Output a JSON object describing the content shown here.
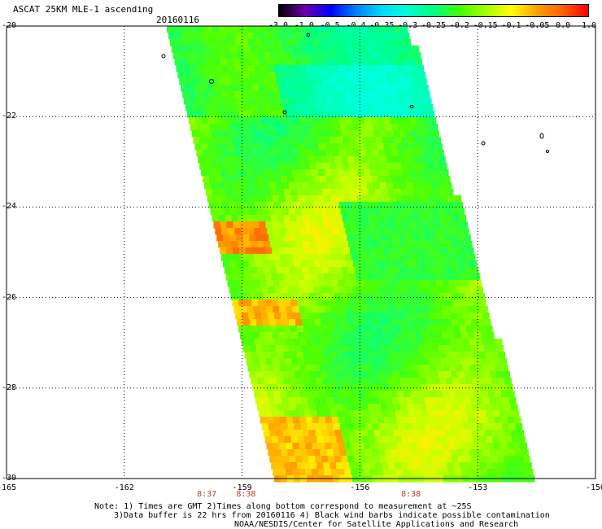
{
  "title": "ASCAT 25KM MLE-1 ascending",
  "date": "20160116",
  "colorbar": {
    "labels": [
      "-3.0",
      "-1.0",
      "-0.5",
      "-0.4",
      "-0.35",
      "-0.3",
      "-0.25",
      "-0.2",
      "-0.15",
      "-0.1",
      "-0.05",
      "0.0",
      "1.0"
    ],
    "colors": [
      "#000000",
      "#6a00a8",
      "#0000ff",
      "#0080ff",
      "#00d8ff",
      "#00ffd0",
      "#00ff80",
      "#40ff00",
      "#a0ff00",
      "#ffff00",
      "#ffa000",
      "#ff6000",
      "#ff0000"
    ]
  },
  "axes": {
    "lat_labels": [
      "-20",
      "-22",
      "-24",
      "-26",
      "-28",
      "-30"
    ],
    "lon_labels": [
      "-165",
      "-162",
      "-159",
      "-156",
      "-153",
      "-150"
    ],
    "lat_values": [
      -20,
      -22,
      -24,
      -26,
      -28,
      -30
    ],
    "lon_values": [
      -165,
      -162,
      -159,
      -156,
      -153,
      -150
    ],
    "lon_range": [
      -165,
      -150
    ],
    "lat_range": [
      -20,
      -30
    ]
  },
  "orbits": [
    {
      "label": "8:37",
      "lon": -159.9
    },
    {
      "label": "8:38",
      "lon": -158.9
    },
    {
      "label": "8:38",
      "lon": -154.7
    }
  ],
  "notes": [
    "Note: 1) Times are GMT 2)Times along bottom correspond to measurement at ~25S",
    "3)Data buffer is 22 hrs from 20160116 4) Black wind barbs indicate possible contamination",
    "NOAA/NESDIS/Center for Satellite Applications and Research"
  ]
}
